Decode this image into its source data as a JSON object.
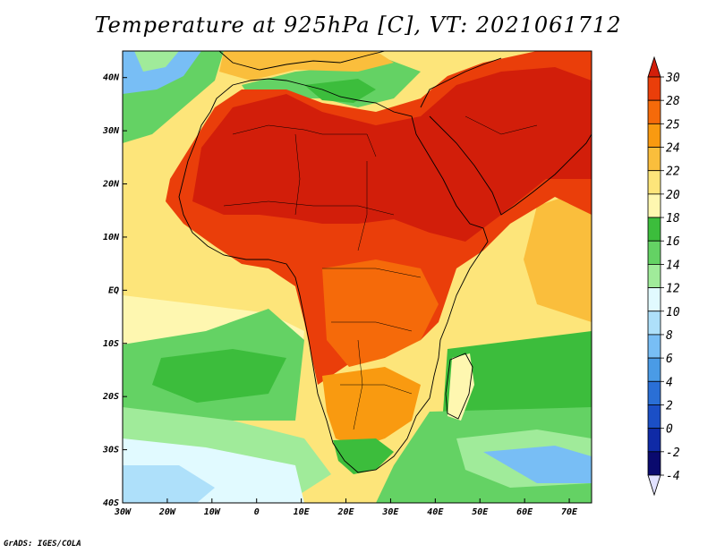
{
  "title": "Temperature at 925hPa [C], VT: 2021061712",
  "credit": "GrADS: IGES/COLA",
  "map": {
    "lon_range": [
      -30,
      75
    ],
    "lat_range": [
      -40,
      45
    ],
    "x_ticks": [
      {
        "lon": -30,
        "label": "30W"
      },
      {
        "lon": -20,
        "label": "20W"
      },
      {
        "lon": -10,
        "label": "10W"
      },
      {
        "lon": 0,
        "label": "0"
      },
      {
        "lon": 10,
        "label": "10E"
      },
      {
        "lon": 20,
        "label": "20E"
      },
      {
        "lon": 30,
        "label": "30E"
      },
      {
        "lon": 40,
        "label": "40E"
      },
      {
        "lon": 50,
        "label": "50E"
      },
      {
        "lon": 60,
        "label": "60E"
      },
      {
        "lon": 70,
        "label": "70E"
      }
    ],
    "y_ticks": [
      {
        "lat": 40,
        "label": "40N"
      },
      {
        "lat": 30,
        "label": "30N"
      },
      {
        "lat": 20,
        "label": "20N"
      },
      {
        "lat": 10,
        "label": "10N"
      },
      {
        "lat": 0,
        "label": "EQ"
      },
      {
        "lat": -10,
        "label": "10S"
      },
      {
        "lat": -20,
        "label": "20S"
      },
      {
        "lat": -30,
        "label": "30S"
      },
      {
        "lat": -40,
        "label": "40S"
      }
    ]
  },
  "colorbar": {
    "levels": [
      "30",
      "28",
      "25",
      "24",
      "22",
      "20",
      "18",
      "16",
      "14",
      "12",
      "10",
      "8",
      "6",
      "4",
      "2",
      "0",
      "-2",
      "-4"
    ],
    "colors": [
      "#d21e0a",
      "#ea3e0a",
      "#f56a0a",
      "#f99a10",
      "#fabe3c",
      "#fde57a",
      "#fef7b0",
      "#3cbd3c",
      "#64d264",
      "#a0eb9a",
      "#e1faff",
      "#aee0fa",
      "#78bef5",
      "#4a9be6",
      "#2a6fd6",
      "#1b4fc6",
      "#0f2aa6",
      "#0a0a6e",
      "#e1e1ff"
    ]
  }
}
